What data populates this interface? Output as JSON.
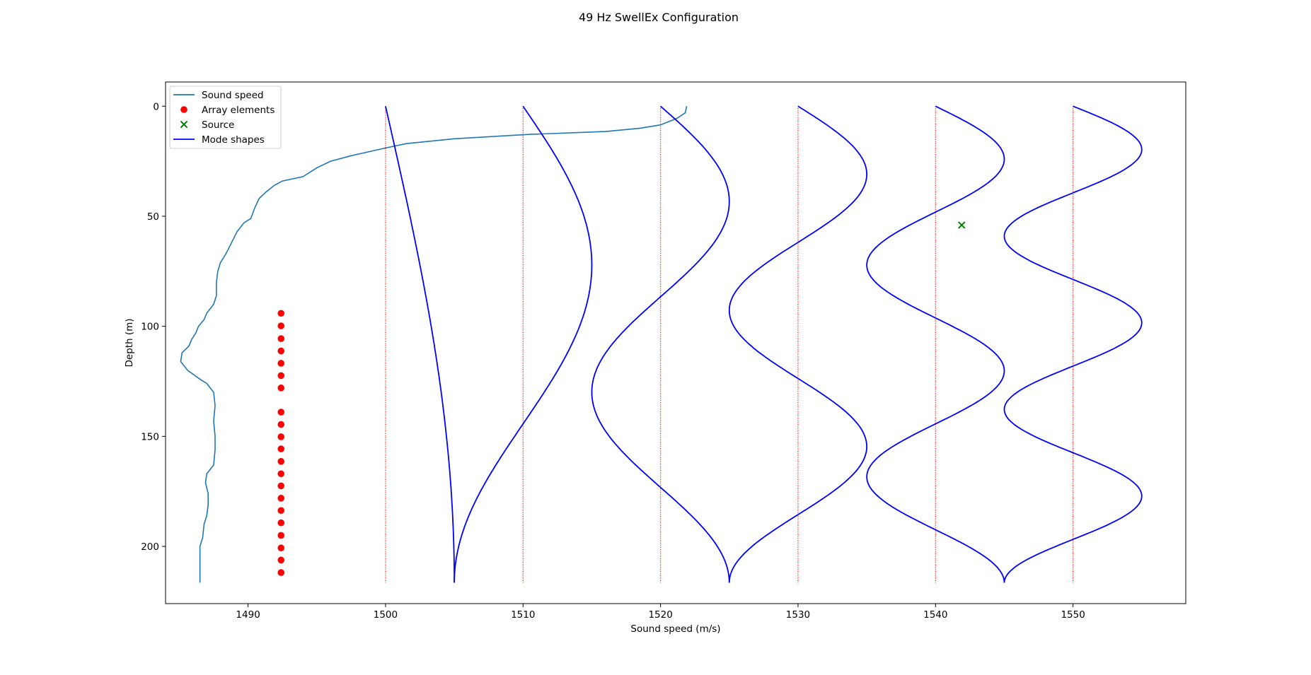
{
  "chart_data": {
    "type": "line",
    "title": "49 Hz SwellEx Configuration",
    "xlabel": "Sound speed (m/s)",
    "ylabel": "Depth (m)",
    "xlim": [
      1484,
      1558.2
    ],
    "ylim": [
      226,
      -11
    ],
    "y_inverted": true,
    "grid": false,
    "legend_placement": "top-left",
    "x_ticks": [
      1490,
      1500,
      1510,
      1520,
      1530,
      1540,
      1550
    ],
    "y_ticks": [
      0,
      50,
      100,
      150,
      200
    ],
    "legend": [
      {
        "label": "Sound speed",
        "marker": "line",
        "color": "#1f77b4"
      },
      {
        "label": "Array elements",
        "marker": "dot",
        "color": "#ff0000"
      },
      {
        "label": "Source",
        "marker": "x",
        "color": "#008000"
      },
      {
        "label": "Mode shapes",
        "marker": "line",
        "color": "#0000ff"
      }
    ],
    "sound_speed_profile": {
      "color": "#1f77b4",
      "points": [
        [
          1521.9,
          0
        ],
        [
          1521.8,
          3
        ],
        [
          1521.2,
          5.5
        ],
        [
          1520.0,
          8.5
        ],
        [
          1518.5,
          10
        ],
        [
          1516.0,
          11.5
        ],
        [
          1510.5,
          12.8
        ],
        [
          1505.0,
          14.8
        ],
        [
          1501.5,
          17
        ],
        [
          1500.0,
          19
        ],
        [
          1497.5,
          22.5
        ],
        [
          1496.0,
          25
        ],
        [
          1495.0,
          28
        ],
        [
          1494.0,
          32
        ],
        [
          1492.5,
          34
        ],
        [
          1491.9,
          36
        ],
        [
          1491.3,
          39
        ],
        [
          1490.8,
          42
        ],
        [
          1490.5,
          46
        ],
        [
          1490.2,
          51
        ],
        [
          1489.7,
          53
        ],
        [
          1489.2,
          57
        ],
        [
          1488.8,
          62
        ],
        [
          1488.4,
          67
        ],
        [
          1488.0,
          71
        ],
        [
          1487.8,
          75
        ],
        [
          1487.7,
          80
        ],
        [
          1487.7,
          86
        ],
        [
          1487.5,
          90
        ],
        [
          1487.0,
          94
        ],
        [
          1486.8,
          97
        ],
        [
          1486.4,
          100
        ],
        [
          1486.2,
          103
        ],
        [
          1485.9,
          106
        ],
        [
          1485.7,
          109
        ],
        [
          1485.2,
          112
        ],
        [
          1485.1,
          116
        ],
        [
          1485.6,
          120
        ],
        [
          1486.5,
          124
        ],
        [
          1487.0,
          126
        ],
        [
          1487.5,
          130
        ],
        [
          1487.6,
          136
        ],
        [
          1487.5,
          143
        ],
        [
          1487.6,
          150
        ],
        [
          1487.6,
          156
        ],
        [
          1487.5,
          163
        ],
        [
          1487.0,
          167
        ],
        [
          1486.9,
          171
        ],
        [
          1487.1,
          176
        ],
        [
          1487.1,
          181
        ],
        [
          1487.0,
          186
        ],
        [
          1486.8,
          190
        ],
        [
          1486.7,
          196
        ],
        [
          1486.5,
          200
        ],
        [
          1486.5,
          206
        ],
        [
          1486.5,
          212
        ],
        [
          1486.5,
          216.5
        ]
      ]
    },
    "array_elements": {
      "color": "#ff0000",
      "x": 1492.4,
      "depths": [
        94.1,
        99.8,
        105.6,
        111.2,
        116.8,
        122.4,
        128,
        139,
        144.6,
        150.2,
        155.7,
        161.4,
        167,
        172.5,
        178.1,
        183.7,
        189.3,
        195,
        200.7,
        206.2,
        211.9
      ]
    },
    "source": {
      "color": "#008000",
      "x": 1541.9,
      "depth": 54
    },
    "mode_shapes": {
      "color": "#0000ff",
      "baseline_color": "#ff0000",
      "max_depth": 216.5,
      "amplitude": 5.0,
      "modes": [
        {
          "offset": 1500,
          "n": 1
        },
        {
          "offset": 1510,
          "n": 2
        },
        {
          "offset": 1520,
          "n": 3
        },
        {
          "offset": 1530,
          "n": 4
        },
        {
          "offset": 1540,
          "n": 5
        },
        {
          "offset": 1550,
          "n": 6
        }
      ]
    }
  }
}
